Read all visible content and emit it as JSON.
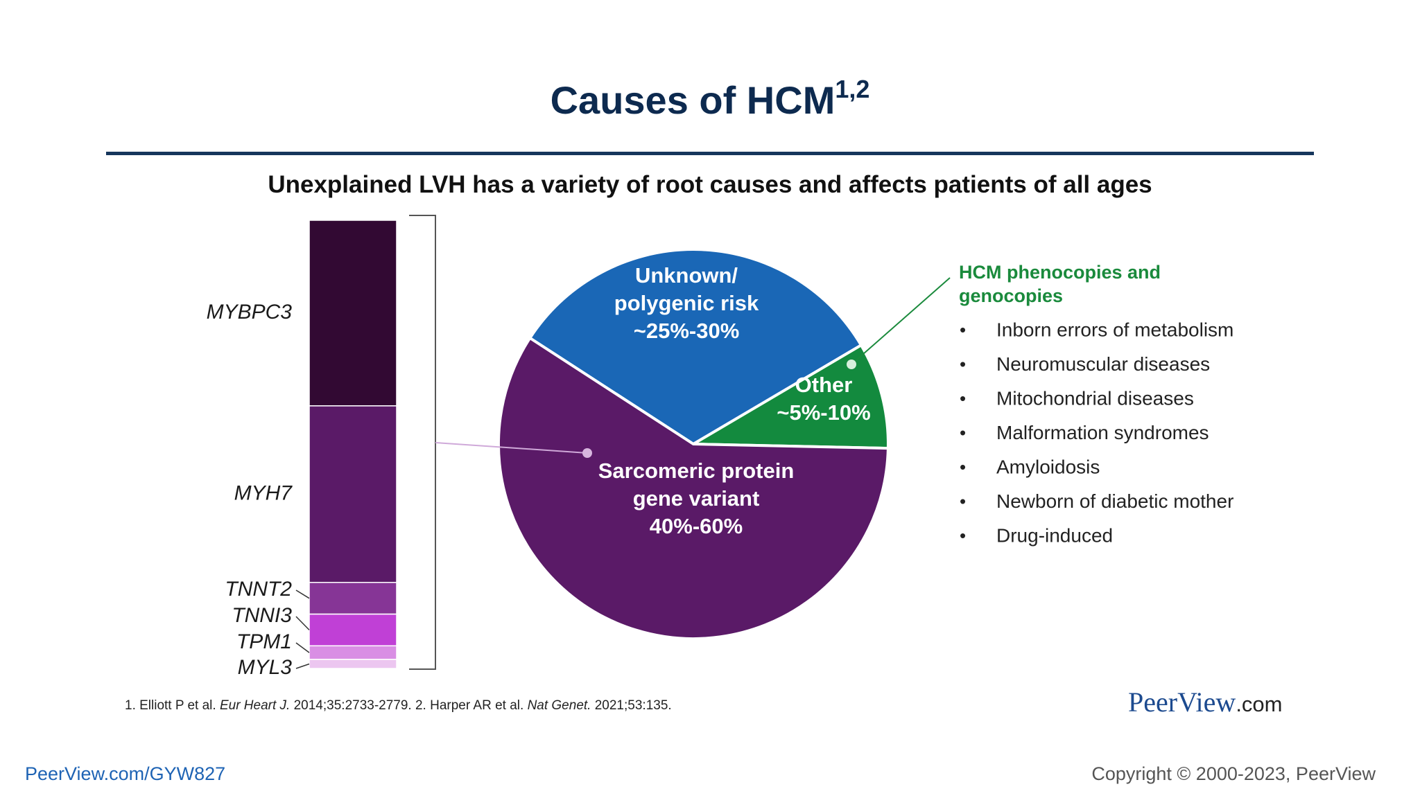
{
  "slide": {
    "title": "Causes of HCM",
    "title_sup": "1,2",
    "subtitle": "Unexplained LVH has a variety of root causes and affects patients of all ages"
  },
  "chart_data": [
    {
      "type": "pie",
      "slices": [
        {
          "label_lines": [
            "Unknown/",
            "polygenic risk",
            "~25%-30%"
          ],
          "range": [
            25,
            30
          ],
          "color": "#1a67b6"
        },
        {
          "label_lines": [
            "Other",
            "~5%-10%"
          ],
          "range": [
            5,
            10
          ],
          "color": "#138a3e"
        },
        {
          "label_lines": [
            "Sarcomeric protein",
            "gene variant",
            "40%-60%"
          ],
          "range": [
            40,
            60
          ],
          "color": "#5a1a67"
        }
      ]
    },
    {
      "type": "bar",
      "orientation": "stacked-vertical",
      "categories": [
        "MYBPC3",
        "MYH7",
        "TNNT2",
        "TNNI3",
        "TPM1",
        "MYL3"
      ],
      "values": [
        41,
        39,
        7,
        7,
        3,
        2
      ],
      "colors": [
        "#320933",
        "#5a1a67",
        "#863596",
        "#c040d6",
        "#d98ee4",
        "#ecc6f0"
      ]
    }
  ],
  "phenocopies": {
    "heading": "HCM phenocopies and genocopies",
    "heading_color": "#1a8a3c",
    "items": [
      "Inborn errors of metabolism",
      "Neuromuscular diseases",
      "Mitochondrial diseases",
      "Malformation syndromes",
      "Amyloidosis",
      "Newborn of diabetic mother",
      "Drug-induced"
    ]
  },
  "footer": {
    "ref1_pre": "1. Elliott P et al. ",
    "ref1_journal": "Eur Heart J.",
    "ref1_post": " 2014;35:2733-2779. 2. Harper AR et al. ",
    "ref2_journal": "Nat Genet.",
    "ref2_post": " 2021;53:135.",
    "logo_main": "PeerView",
    "logo_domain": ".com",
    "url": "PeerView.com/GYW827",
    "copyright": "Copyright © 2000-2023, PeerView"
  }
}
